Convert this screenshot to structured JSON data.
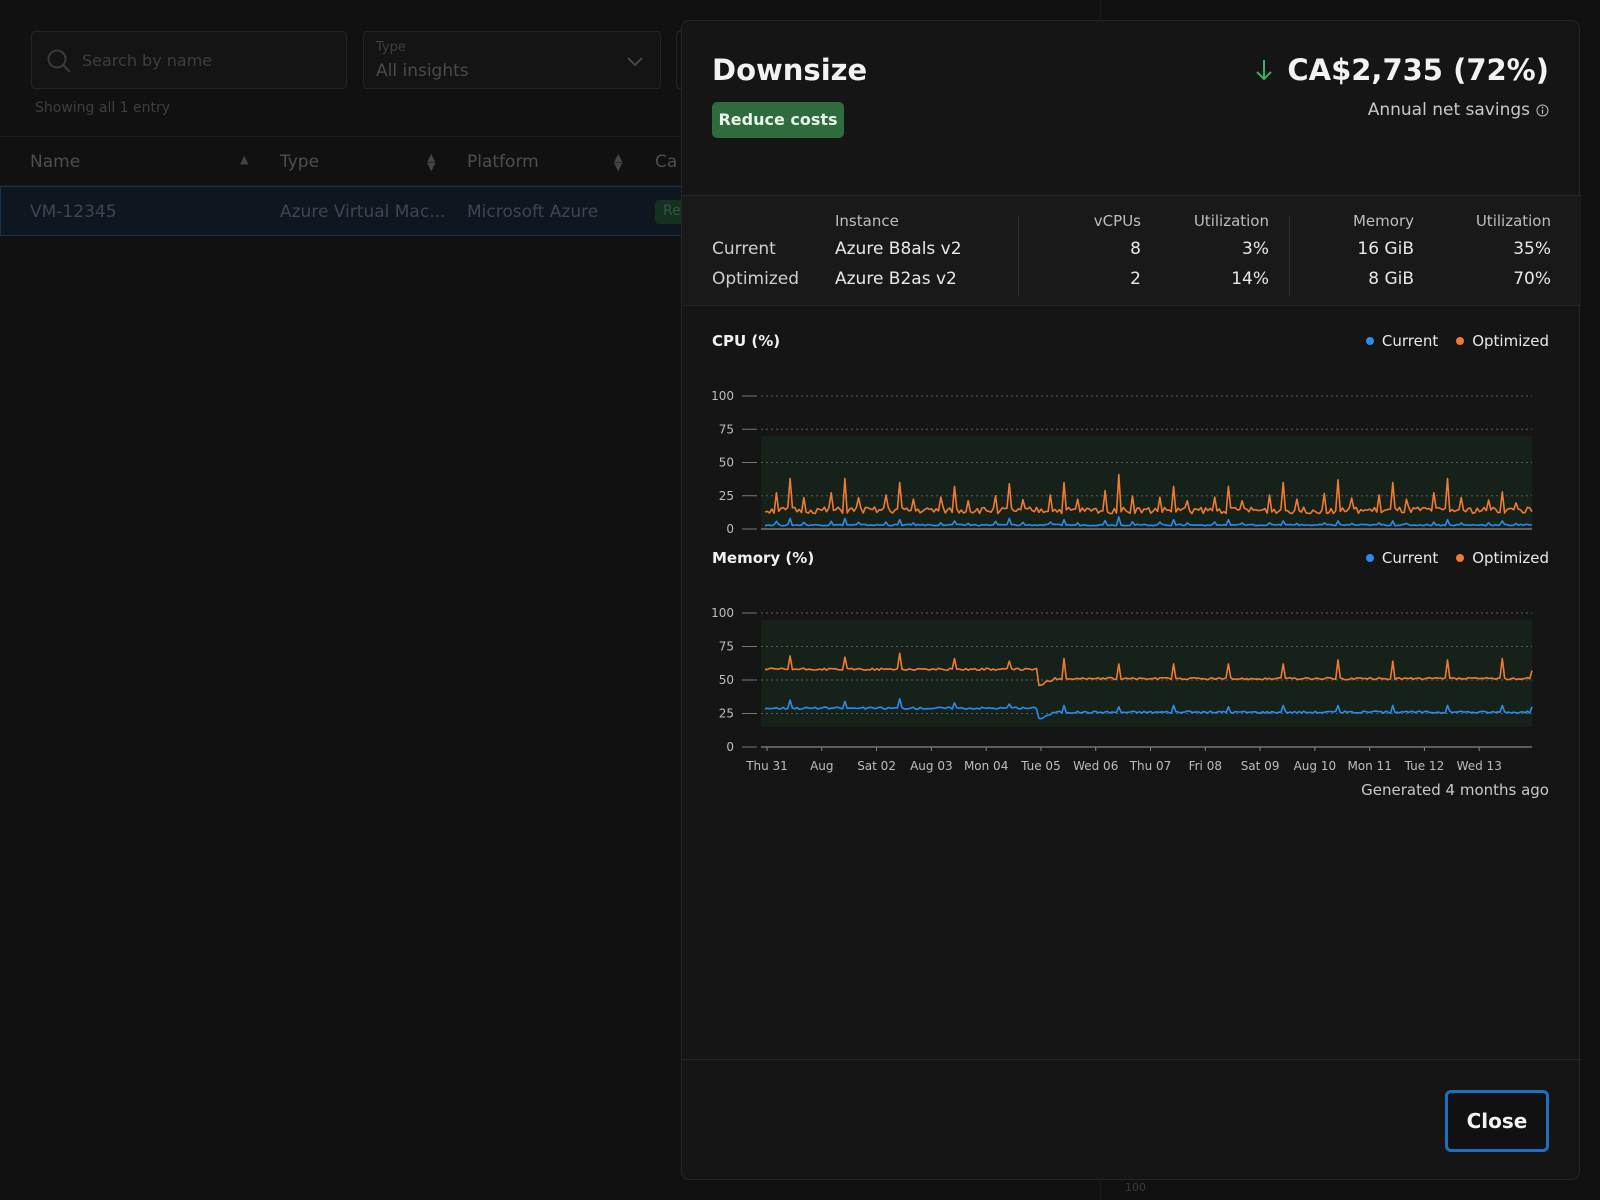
{
  "search": {
    "placeholder": "Search by name"
  },
  "type_filter": {
    "label": "Type",
    "value": "All insights"
  },
  "list": {
    "showing_text": "Showing all 1 entry",
    "columns": [
      "Name",
      "Type",
      "Platform",
      "Ca"
    ],
    "rows": [
      {
        "name": "VM-12345",
        "type": "Azure Virtual Mac...",
        "platform": "Microsoft Azure",
        "category": "Re"
      }
    ]
  },
  "background_axis_label": "100",
  "modal": {
    "title": "Downsize",
    "badge": "Reduce costs",
    "savings_amount": "CA$2,735 (72%)",
    "savings_label": "Annual net savings",
    "spec": {
      "headers": {
        "instance": "Instance",
        "vcpus": "vCPUs",
        "cpu_util": "Utilization",
        "memory": "Memory",
        "mem_util": "Utilization"
      },
      "rows": [
        {
          "label": "Current",
          "instance": "Azure B8als v2",
          "vcpus": "8",
          "cpu_util": "3%",
          "memory": "16 GiB",
          "mem_util": "35%"
        },
        {
          "label": "Optimized",
          "instance": "Azure B2as v2",
          "vcpus": "2",
          "cpu_util": "14%",
          "memory": "8 GiB",
          "mem_util": "70%"
        }
      ]
    },
    "generated": "Generated 4 months ago",
    "close_label": "Close"
  },
  "colors": {
    "current": "#2a8cf0",
    "optimized": "#f07a32",
    "accent": "#1e6fc2",
    "badge": "#2f6b3d",
    "savings_arrow": "#3bb25a"
  },
  "chart_data": [
    {
      "type": "line",
      "title": "CPU (%)",
      "ylim": [
        0,
        100
      ],
      "yticks": [
        0,
        25,
        50,
        75,
        100
      ],
      "x_ticks": [
        "Thu 31",
        "Aug",
        "Sat 02",
        "Aug 03",
        "Mon 04",
        "Tue 05",
        "Wed 06",
        "Thu 07",
        "Fri 08",
        "Sat 09",
        "Aug 10",
        "Mon 11",
        "Tue 12",
        "Wed 13"
      ],
      "target_band": [
        0,
        70
      ],
      "series": [
        {
          "name": "Current",
          "color": "#2a8cf0",
          "baseline": 3,
          "spikes": [
            8,
            8,
            7,
            6,
            8,
            7,
            9,
            7,
            7,
            6,
            6,
            6,
            7,
            6
          ],
          "end": 3
        },
        {
          "name": "Optimized",
          "color": "#f07a32",
          "baseline": 14,
          "spikes": [
            38,
            38,
            35,
            32,
            34,
            35,
            41,
            32,
            32,
            35,
            37,
            35,
            38,
            28
          ],
          "end": 13
        }
      ]
    },
    {
      "type": "line",
      "title": "Memory (%)",
      "ylim": [
        0,
        100
      ],
      "yticks": [
        0,
        25,
        50,
        75,
        100
      ],
      "x_ticks": [
        "Thu 31",
        "Aug",
        "Sat 02",
        "Aug 03",
        "Mon 04",
        "Tue 05",
        "Wed 06",
        "Thu 07",
        "Fri 08",
        "Sat 09",
        "Aug 10",
        "Mon 11",
        "Tue 12",
        "Wed 13"
      ],
      "target_band": [
        15,
        95
      ],
      "series": [
        {
          "name": "Current",
          "color": "#2a8cf0",
          "baseline_before": 29,
          "baseline_after": 26,
          "step_day": 5,
          "spikes": [
            35,
            34,
            36,
            33,
            32,
            31,
            30,
            31,
            30,
            31,
            31,
            31,
            31,
            31
          ],
          "end": 30
        },
        {
          "name": "Optimized",
          "color": "#f07a32",
          "baseline_before": 58,
          "baseline_after": 51,
          "step_day": 5,
          "spikes": [
            68,
            67,
            70,
            66,
            64,
            66,
            62,
            62,
            62,
            62,
            65,
            64,
            65,
            66
          ],
          "end": 57
        }
      ]
    }
  ]
}
